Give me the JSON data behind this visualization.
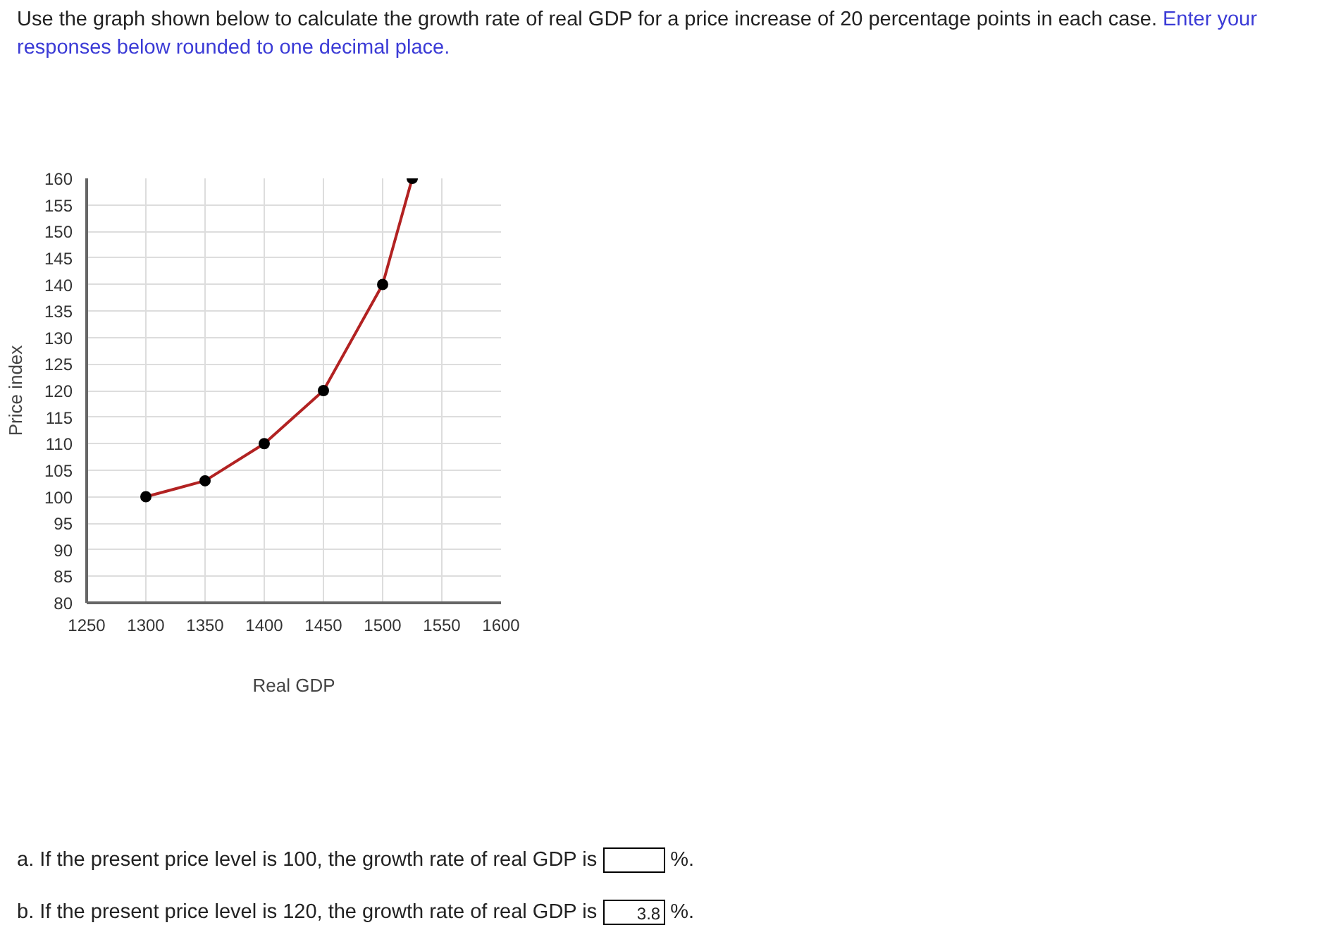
{
  "chart_data": {
    "type": "line",
    "title": "Use the graph shown below to calculate the growth rate of real GDP for a price increase of 20 percentage points in each case.",
    "subtitle": "Enter your responses below rounded to one decimal place.",
    "xlabel": "Real GDP",
    "ylabel": "Price index",
    "x": [
      1300,
      1350,
      1400,
      1450,
      1500,
      1525
    ],
    "series": [
      {
        "color": "#b22222",
        "marker": "none",
        "values": [
          100,
          103,
          110,
          120,
          140,
          160
        ]
      },
      {
        "type": "scatter",
        "color": "#000000",
        "marker": "circle",
        "values": [
          100,
          103,
          110,
          120,
          140,
          160
        ]
      }
    ],
    "xlim": [
      1250,
      1600
    ],
    "xticks": [
      1250,
      1300,
      1350,
      1400,
      1450,
      1500,
      1550,
      1600
    ],
    "ylim": [
      80,
      160
    ],
    "yticks": [
      80,
      85,
      90,
      95,
      100,
      105,
      110,
      115,
      120,
      125,
      130,
      135,
      140,
      145,
      150,
      155,
      160
    ],
    "grid": true,
    "annotations": [
      "a. If the present price level is 100, the growth rate of real GDP is",
      "%.",
      "b. If the present price level is 120, the growth rate of real GDP is",
      "3.8",
      "%."
    ]
  }
}
